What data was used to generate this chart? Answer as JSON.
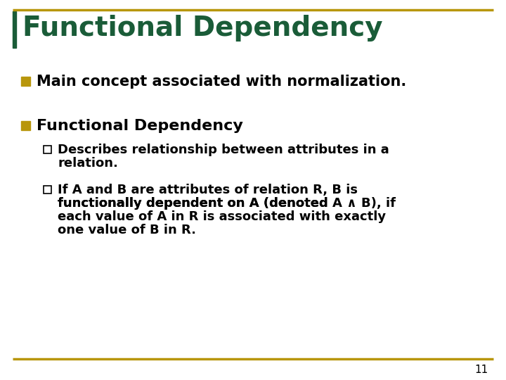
{
  "title": "Functional Dependency",
  "title_color": "#1a5c38",
  "title_fontsize": 28,
  "background_color": "#ffffff",
  "border_color": "#b8960c",
  "border_left_color": "#1a5c38",
  "bullet1_text": "Main concept associated with normalization.",
  "bullet2_text": "Functional Dependency",
  "sub_bullet1_line1": "Describes relationship between attributes in a",
  "sub_bullet1_line2": "relation.",
  "sub_bullet2_line1": "If A and B are attributes of relation R, B is",
  "sub_bullet2_line2": "functionally dependent on A (denoted ",
  "sub_bullet2_special": "A ∧ B",
  "sub_bullet2_line3": "), if",
  "sub_bullet2_line4": "each value of A in R is associated with exactly",
  "sub_bullet2_line5": "one value of B in R.",
  "bullet_color": "#b8960c",
  "text_color": "#000000",
  "page_number": "11",
  "main_fontsize": 15,
  "sub_fontsize": 13,
  "title_area_bg": "#ffffff"
}
